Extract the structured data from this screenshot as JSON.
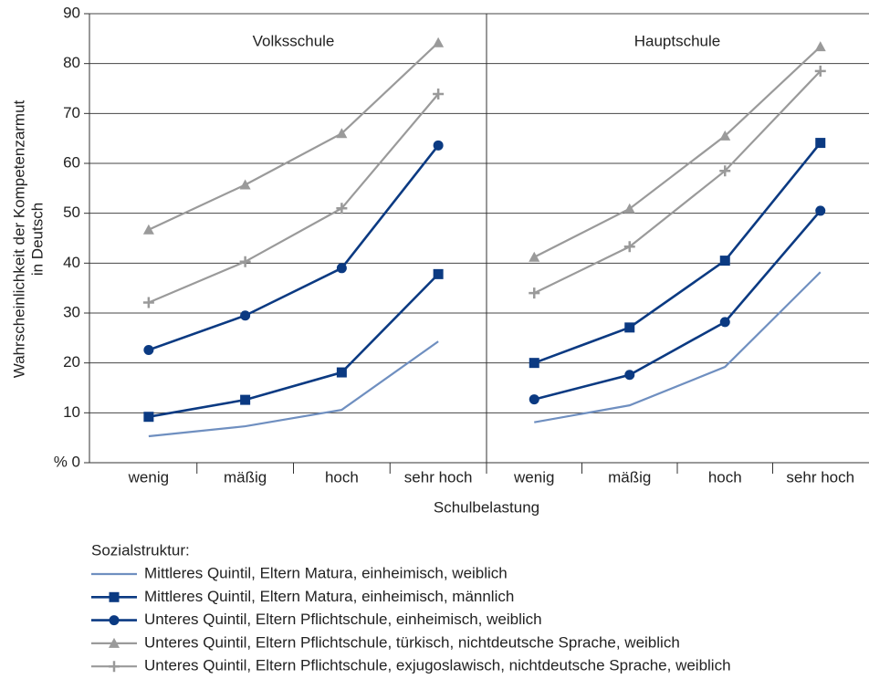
{
  "chart_data": {
    "type": "line",
    "ylabel": [
      "Wahrscheinlichkeit der Kompetenzarmut",
      "in Deutsch"
    ],
    "xlabel": "Schulbelastung",
    "panels": [
      "Volksschule",
      "Hauptschule"
    ],
    "categories": [
      "wenig",
      "mäßig",
      "hoch",
      "sehr hoch"
    ],
    "ylim": [
      0,
      90
    ],
    "yticks": [
      {
        "value": 0,
        "label": "% 0"
      },
      10,
      20,
      30,
      40,
      50,
      60,
      70,
      80,
      90
    ],
    "grid": true,
    "legend_title": "Sozialstruktur:",
    "series": [
      {
        "name": "Mittleres Quintil, Eltern Matura, einheimisch, weiblich",
        "color": "#6f8fc0",
        "marker": "none",
        "values": [
          [
            5.3,
            7.3,
            10.6,
            24.3
          ],
          [
            8.1,
            11.5,
            19.2,
            38.2
          ]
        ]
      },
      {
        "name": "Mittleres Quintil, Eltern Matura, einheimisch, männlich",
        "color": "#0b3a82",
        "marker": "square",
        "values": [
          [
            9.2,
            12.6,
            18.1,
            37.8
          ],
          [
            20.0,
            27.1,
            40.5,
            64.1
          ]
        ]
      },
      {
        "name": "Unteres Quintil, Eltern Pflichtschule, einheimisch, weiblich",
        "color": "#0b3a82",
        "marker": "circle",
        "values": [
          [
            22.6,
            29.5,
            39.0,
            63.6
          ],
          [
            12.7,
            17.6,
            28.2,
            50.5
          ]
        ]
      },
      {
        "name": "Unteres Quintil, Eltern Pflichtschule, türkisch, nichtdeutsche Sprache, weiblich",
        "color": "#9a9a9a",
        "marker": "triangle",
        "values": [
          [
            46.7,
            55.7,
            66.0,
            84.2
          ],
          [
            41.2,
            50.9,
            65.5,
            83.4
          ]
        ]
      },
      {
        "name": "Unteres Quintil, Eltern Pflichtschule, exjugoslawisch, nichtdeutsche Sprache, weiblich",
        "color": "#9a9a9a",
        "marker": "plus",
        "values": [
          [
            32.1,
            40.3,
            51.0,
            73.9
          ],
          [
            34.0,
            43.3,
            58.5,
            78.5
          ]
        ]
      }
    ]
  }
}
